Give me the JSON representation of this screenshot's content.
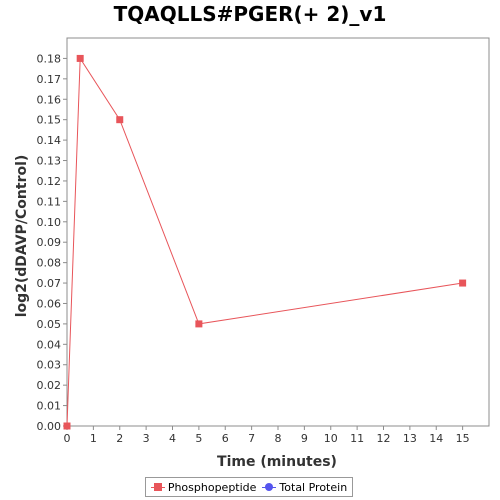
{
  "chart_data": {
    "type": "line",
    "title": "TQAQLLS#PGER(+ 2)_v1",
    "xlabel": "Time (minutes)",
    "ylabel": "log2(dDAVP/Control)",
    "xlim": [
      0,
      16
    ],
    "ylim": [
      0,
      0.19
    ],
    "x_ticks": [
      0,
      1,
      2,
      3,
      4,
      5,
      6,
      7,
      8,
      9,
      10,
      11,
      12,
      13,
      14,
      15
    ],
    "y_ticks": [
      "0.00",
      "0.01",
      "0.02",
      "0.03",
      "0.04",
      "0.05",
      "0.06",
      "0.07",
      "0.08",
      "0.09",
      "0.10",
      "0.11",
      "0.12",
      "0.13",
      "0.14",
      "0.15",
      "0.16",
      "0.17",
      "0.18"
    ],
    "grid": false,
    "legend_position": "bottom",
    "series": [
      {
        "name": "Phosphopeptide",
        "color": "#e8555a",
        "marker": "square",
        "x": [
          0,
          0.5,
          2,
          5,
          15
        ],
        "y": [
          0.0,
          0.18,
          0.15,
          0.05,
          0.07
        ]
      },
      {
        "name": "Total Protein",
        "color": "#5555ee",
        "marker": "circle",
        "x": [],
        "y": []
      }
    ]
  }
}
